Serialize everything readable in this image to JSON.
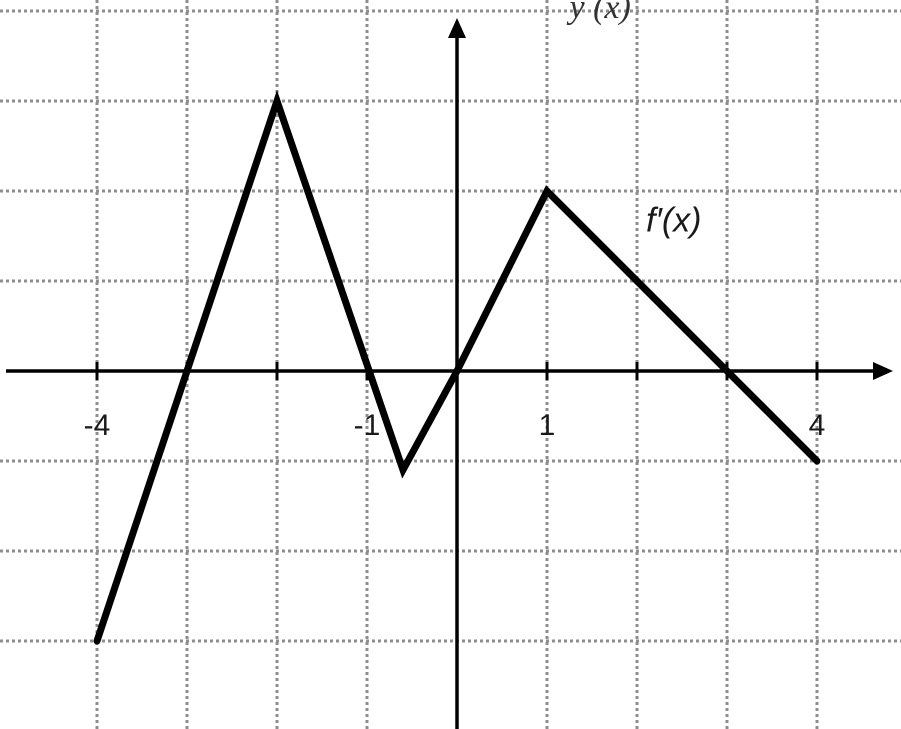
{
  "chart_data": {
    "type": "line",
    "title": "",
    "xlabel": "",
    "ylabel": "",
    "xlim": [
      -4.5,
      4.9
    ],
    "ylim": [
      -4,
      4.1
    ],
    "grid": true,
    "x_ticks": [
      -4,
      -3,
      -2,
      -1,
      0,
      1,
      2,
      3,
      4
    ],
    "y_ticks": [
      -4,
      -3,
      -2,
      -1,
      0,
      1,
      2,
      3,
      4
    ],
    "tick_labels": [
      {
        "x": -4,
        "text": "-4"
      },
      {
        "x": -1,
        "text": "-1"
      },
      {
        "x": 1,
        "text": "1"
      },
      {
        "x": 4,
        "text": "4"
      }
    ],
    "top_label": "y (x)",
    "series": [
      {
        "name": "f′(x)",
        "points": [
          [
            -4,
            -3
          ],
          [
            -2,
            3
          ],
          [
            -0.6,
            -1.1
          ],
          [
            0,
            0
          ],
          [
            1,
            2
          ],
          [
            3,
            0
          ],
          [
            4,
            -1
          ]
        ]
      }
    ],
    "colors": {
      "curve": "#000000",
      "axes": "#000000",
      "grid": "#8e8e8e"
    }
  }
}
